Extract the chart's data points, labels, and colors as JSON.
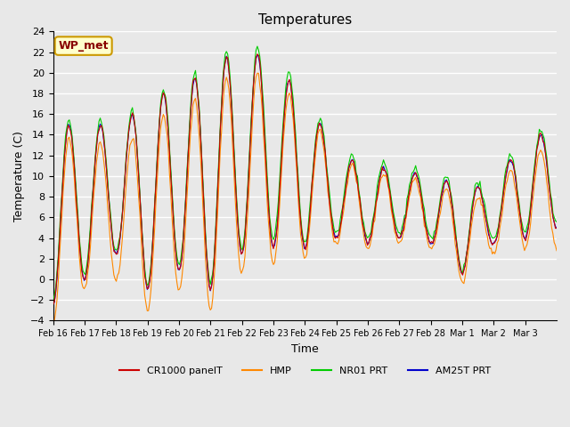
{
  "title": "Temperatures",
  "ylabel": "Temperature (C)",
  "xlabel": "Time",
  "ylim": [
    -4,
    24
  ],
  "yticks": [
    -4,
    -2,
    0,
    2,
    4,
    6,
    8,
    10,
    12,
    14,
    16,
    18,
    20,
    22,
    24
  ],
  "bg_color": "#e8e8e8",
  "plot_bg_color": "#e8e8e8",
  "grid_color": "#ffffff",
  "legend_labels": [
    "CR1000 panelT",
    "HMP",
    "NR01 PRT",
    "AM25T PRT"
  ],
  "line_colors": [
    "#cc0000",
    "#ff8800",
    "#00cc00",
    "#0000cc"
  ],
  "annotation_text": "WP_met",
  "annotation_bg": "#ffffcc",
  "annotation_border": "#cc9900",
  "annotation_text_color": "#880000",
  "n_points": 408,
  "days": [
    "Feb 16",
    "Feb 17",
    "Feb 18",
    "Feb 19",
    "Feb 20",
    "Feb 21",
    "Feb 22",
    "Feb 23",
    "Feb 24",
    "Feb 25",
    "Feb 26",
    "Feb 27",
    "Feb 28",
    "Mar 1",
    "Mar 2",
    "Mar 3"
  ],
  "n_days": 16
}
